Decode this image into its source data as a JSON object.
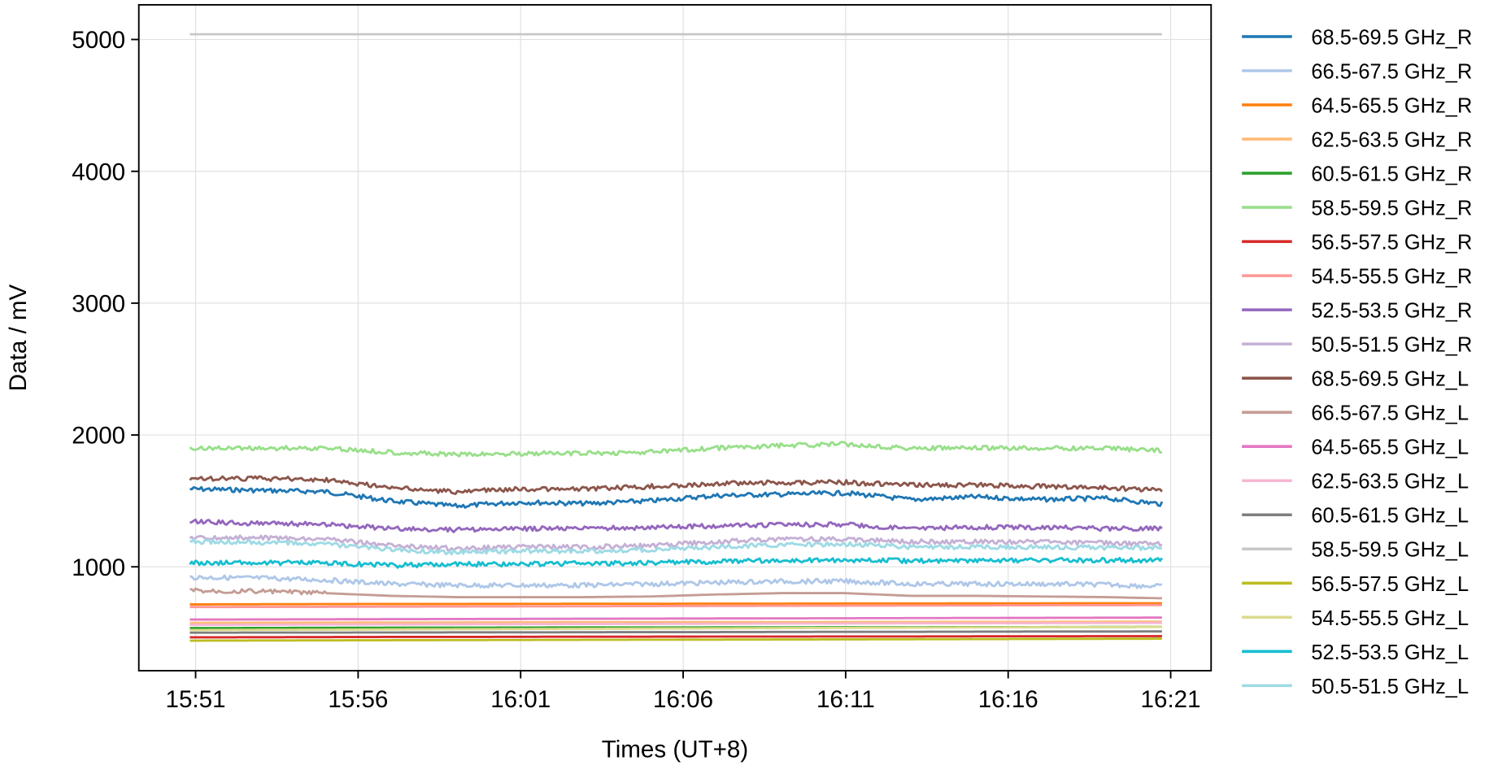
{
  "chart_data": {
    "type": "line",
    "title": "",
    "xlabel": "Times (UT+8)",
    "ylabel": "Data / mV",
    "x_ticks": [
      "15:51",
      "15:56",
      "16:01",
      "16:06",
      "16:11",
      "16:16",
      "16:21"
    ],
    "y_ticks": [
      1000,
      2000,
      3000,
      4000,
      5000
    ],
    "xlim": [
      "15:50",
      "16:22"
    ],
    "ylim": [
      212,
      5263
    ],
    "grid": true,
    "legend_position": "right-outside",
    "x": [
      "15:51",
      "15:53",
      "15:55",
      "15:57",
      "15:59",
      "16:01",
      "16:03",
      "16:05",
      "16:07",
      "16:09",
      "16:11",
      "16:13",
      "16:15",
      "16:17",
      "16:19",
      "16:21"
    ],
    "series": [
      {
        "name": "68.5-69.5 GHz_R",
        "color": "#1f77b4",
        "values": [
          1590,
          1580,
          1570,
          1500,
          1460,
          1490,
          1480,
          1500,
          1540,
          1550,
          1560,
          1510,
          1530,
          1510,
          1520,
          1470
        ]
      },
      {
        "name": "66.5-67.5 GHz_R",
        "color": "#aec7e8",
        "values": [
          920,
          915,
          900,
          870,
          860,
          860,
          860,
          870,
          880,
          890,
          890,
          870,
          870,
          870,
          865,
          850
        ]
      },
      {
        "name": "64.5-65.5 GHz_R",
        "color": "#ff7f0e",
        "values": [
          715,
          716,
          717,
          718,
          718,
          719,
          720,
          720,
          721,
          721,
          722,
          722,
          723,
          723,
          724,
          724
        ]
      },
      {
        "name": "62.5-63.5 GHz_R",
        "color": "#ffbb78",
        "values": [
          575,
          576,
          577,
          578,
          578,
          579,
          580,
          580,
          581,
          581,
          582,
          582,
          583,
          583,
          584,
          584
        ]
      },
      {
        "name": "60.5-61.5 GHz_R",
        "color": "#2ca02c",
        "values": [
          535,
          536,
          537,
          538,
          538,
          539,
          540,
          540,
          541,
          541,
          542,
          542,
          543,
          543,
          544,
          545
        ]
      },
      {
        "name": "58.5-59.5 GHz_R",
        "color": "#98df8a",
        "values": [
          1900,
          1900,
          1900,
          1870,
          1850,
          1860,
          1860,
          1870,
          1900,
          1920,
          1930,
          1900,
          1900,
          1900,
          1900,
          1880
        ]
      },
      {
        "name": "56.5-57.5 GHz_R",
        "color": "#d62728",
        "values": [
          465,
          466,
          467,
          468,
          468,
          469,
          470,
          470,
          471,
          471,
          472,
          472,
          473,
          473,
          474,
          474
        ]
      },
      {
        "name": "54.5-55.5 GHz_R",
        "color": "#ff9896",
        "values": [
          695,
          696,
          697,
          698,
          699,
          700,
          701,
          702,
          703,
          704,
          705,
          706,
          707,
          708,
          709,
          710
        ]
      },
      {
        "name": "52.5-53.5 GHz_R",
        "color": "#9467bd",
        "values": [
          1340,
          1330,
          1320,
          1290,
          1280,
          1290,
          1290,
          1300,
          1310,
          1320,
          1320,
          1290,
          1300,
          1300,
          1290,
          1290
        ]
      },
      {
        "name": "50.5-51.5 GHz_R",
        "color": "#c5b0d5",
        "values": [
          1225,
          1220,
          1210,
          1160,
          1140,
          1150,
          1150,
          1160,
          1190,
          1210,
          1210,
          1190,
          1190,
          1190,
          1180,
          1170
        ]
      },
      {
        "name": "68.5-69.5 GHz_L",
        "color": "#8c564b",
        "values": [
          1670,
          1670,
          1660,
          1600,
          1570,
          1590,
          1590,
          1610,
          1630,
          1640,
          1640,
          1620,
          1620,
          1610,
          1600,
          1580
        ]
      },
      {
        "name": "66.5-67.5 GHz_L",
        "color": "#c49c94",
        "values": [
          820,
          815,
          800,
          780,
          770,
          770,
          770,
          775,
          790,
          800,
          800,
          780,
          780,
          775,
          770,
          760
        ]
      },
      {
        "name": "64.5-65.5 GHz_L",
        "color": "#e377c2",
        "values": [
          600,
          601,
          602,
          603,
          604,
          605,
          606,
          607,
          608,
          609,
          610,
          611,
          612,
          613,
          614,
          615
        ]
      },
      {
        "name": "62.5-63.5 GHz_L",
        "color": "#f7b6d2",
        "values": [
          560,
          561,
          562,
          563,
          564,
          565,
          566,
          567,
          568,
          569,
          570,
          571,
          572,
          573,
          574,
          575
        ]
      },
      {
        "name": "60.5-61.5 GHz_L",
        "color": "#7f7f7f",
        "values": [
          500,
          501,
          501,
          502,
          503,
          503,
          504,
          505,
          505,
          506,
          507,
          507,
          508,
          509,
          509,
          510
        ]
      },
      {
        "name": "58.5-59.5 GHz_L",
        "color": "#c7c7c7",
        "values": [
          5040,
          5040,
          5040,
          5040,
          5040,
          5040,
          5040,
          5040,
          5040,
          5040,
          5040,
          5040,
          5040,
          5040,
          5040,
          5040
        ]
      },
      {
        "name": "56.5-57.5 GHz_L",
        "color": "#bcbd22",
        "values": [
          440,
          441,
          442,
          443,
          444,
          445,
          446,
          447,
          448,
          449,
          450,
          451,
          452,
          453,
          454,
          455
        ]
      },
      {
        "name": "54.5-55.5 GHz_L",
        "color": "#dbdb8d",
        "values": [
          520,
          522,
          523,
          525,
          527,
          528,
          530,
          532,
          533,
          535,
          537,
          538,
          540,
          542,
          543,
          545
        ]
      },
      {
        "name": "52.5-53.5 GHz_L",
        "color": "#17becf",
        "values": [
          1030,
          1030,
          1030,
          1010,
          1020,
          1020,
          1025,
          1030,
          1040,
          1050,
          1050,
          1045,
          1050,
          1050,
          1050,
          1050
        ]
      },
      {
        "name": "50.5-51.5 GHz_L",
        "color": "#9edae5",
        "values": [
          1190,
          1185,
          1170,
          1130,
          1110,
          1120,
          1120,
          1130,
          1150,
          1170,
          1170,
          1150,
          1150,
          1150,
          1145,
          1140
        ]
      }
    ]
  }
}
